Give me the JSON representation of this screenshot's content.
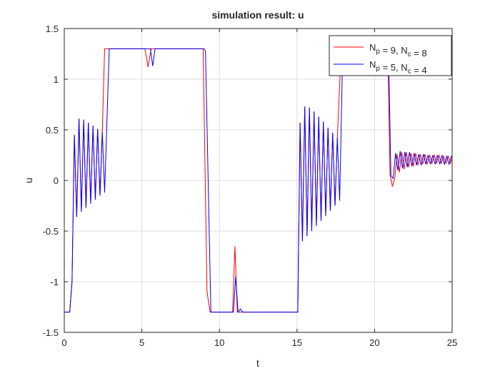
{
  "chart_data": {
    "type": "line",
    "title": "simulation result: u",
    "xlabel": "t",
    "ylabel": "u",
    "xlim": [
      0,
      25
    ],
    "ylim": [
      -1.5,
      1.5
    ],
    "xticks": [
      0,
      5,
      10,
      15,
      20,
      25
    ],
    "yticks": [
      -1.5,
      -1,
      -0.5,
      0,
      0.5,
      1,
      1.5
    ],
    "grid": true,
    "legend": "northeast",
    "series": [
      {
        "name": "Np = 9, Nc = 8",
        "color": "#ff0000",
        "x": [
          0,
          0.35,
          0.5,
          0.65,
          0.8,
          0.95,
          1.1,
          1.25,
          1.4,
          1.55,
          1.7,
          1.85,
          2.0,
          2.15,
          2.3,
          2.45,
          2.6,
          5.2,
          5.4,
          5.6,
          8.95,
          9.2,
          9.4,
          10.85,
          11.0,
          11.15,
          15.05,
          15.2,
          15.35,
          15.5,
          15.65,
          15.8,
          15.95,
          16.1,
          16.25,
          16.4,
          16.55,
          16.7,
          16.85,
          17.0,
          17.15,
          17.3,
          17.45,
          17.6,
          17.85,
          20.85,
          21.0,
          21.15,
          21.3,
          21.45,
          21.6,
          21.75,
          21.9,
          22.05,
          22.2,
          22.35,
          22.5,
          22.65,
          22.8,
          22.95,
          23.1,
          23.25,
          23.4,
          23.55,
          23.7,
          23.85,
          24.0,
          24.15,
          24.3,
          24.45,
          24.6,
          24.75,
          24.9,
          25
        ],
        "values": [
          -1.3,
          -1.3,
          -1.0,
          0.45,
          -0.36,
          0.61,
          -0.31,
          0.6,
          -0.27,
          0.57,
          -0.23,
          0.54,
          -0.19,
          0.51,
          -0.15,
          0.48,
          1.3,
          1.3,
          1.12,
          1.3,
          1.3,
          -1.1,
          -1.3,
          -1.3,
          -0.65,
          -1.3,
          -1.3,
          0.57,
          -0.6,
          0.73,
          -0.55,
          0.72,
          -0.5,
          0.68,
          -0.45,
          0.63,
          -0.4,
          0.58,
          -0.35,
          0.52,
          -0.3,
          0.47,
          -0.25,
          0.42,
          1.3,
          1.3,
          0.05,
          -0.06,
          0.02,
          0.26,
          0.08,
          0.28,
          0.11,
          0.28,
          0.13,
          0.27,
          0.14,
          0.27,
          0.15,
          0.26,
          0.16,
          0.26,
          0.16,
          0.25,
          0.17,
          0.25,
          0.17,
          0.25,
          0.17,
          0.24,
          0.17,
          0.24,
          0.17,
          0.23
        ]
      },
      {
        "name": "Np = 5, Nc = 4",
        "color": "#0000ff",
        "x": [
          0,
          0.35,
          0.5,
          0.65,
          0.8,
          0.95,
          1.1,
          1.25,
          1.4,
          1.55,
          1.7,
          1.85,
          2.0,
          2.15,
          2.3,
          2.45,
          2.6,
          2.9,
          5.55,
          5.7,
          5.85,
          9.0,
          9.1,
          9.45,
          10.9,
          11.05,
          11.2,
          11.35,
          11.5,
          15.05,
          15.2,
          15.35,
          15.5,
          15.65,
          15.8,
          15.95,
          16.1,
          16.25,
          16.4,
          16.55,
          16.7,
          16.85,
          17.0,
          17.15,
          17.3,
          17.45,
          17.6,
          17.75,
          17.95,
          20.9,
          21.05,
          21.2,
          21.35,
          21.5,
          21.65,
          21.8,
          21.95,
          22.1,
          22.25,
          22.4,
          22.55,
          22.7,
          22.85,
          23.0,
          23.15,
          23.3,
          23.45,
          23.6,
          23.75,
          23.9,
          24.05,
          24.2,
          24.35,
          24.5,
          24.65,
          24.8,
          24.95,
          25
        ],
        "values": [
          -1.3,
          -1.3,
          -1.0,
          0.45,
          -0.36,
          0.61,
          -0.31,
          0.6,
          -0.27,
          0.57,
          -0.23,
          0.54,
          -0.19,
          0.51,
          -0.15,
          0.48,
          -0.12,
          1.3,
          1.3,
          1.13,
          1.3,
          1.3,
          1.28,
          -1.3,
          -1.3,
          -0.95,
          -1.3,
          -1.27,
          -1.3,
          -1.3,
          0.57,
          -0.6,
          0.73,
          -0.55,
          0.72,
          -0.5,
          0.68,
          -0.45,
          0.63,
          -0.4,
          0.58,
          -0.35,
          0.52,
          -0.3,
          0.47,
          -0.25,
          0.42,
          -0.2,
          1.3,
          1.3,
          0.05,
          0.02,
          0.27,
          0.1,
          0.29,
          0.12,
          0.28,
          0.13,
          0.28,
          0.14,
          0.27,
          0.15,
          0.26,
          0.15,
          0.26,
          0.16,
          0.25,
          0.16,
          0.25,
          0.16,
          0.25,
          0.16,
          0.25,
          0.16,
          0.24,
          0.16,
          0.24,
          0.23
        ]
      }
    ]
  }
}
